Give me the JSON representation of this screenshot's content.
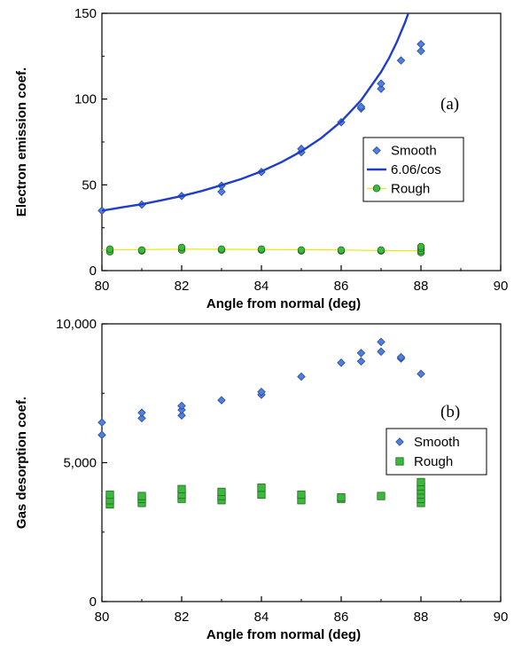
{
  "chart_data": [
    {
      "type": "scatter",
      "panel_label": "(a)",
      "xlabel": "Angle from normal (deg)",
      "ylabel": "Electron emission coef.",
      "xlim": [
        80,
        90
      ],
      "ylim": [
        0,
        150
      ],
      "x_ticks": [
        80,
        82,
        84,
        86,
        88,
        90
      ],
      "x_tick_labels": [
        "80",
        "82",
        "84",
        "86",
        "88",
        "90"
      ],
      "y_ticks": [
        0,
        50,
        100,
        150
      ],
      "y_tick_labels": [
        "0",
        "50",
        "100",
        "150"
      ],
      "grid": false,
      "legend_position": "right-middle",
      "series": [
        {
          "name": "Smooth",
          "kind": "scatter",
          "marker": "diamond",
          "color": "#4f7fe0",
          "points": [
            [
              80,
              35
            ],
            [
              81,
              38.5
            ],
            [
              82,
              43.5
            ],
            [
              83,
              46
            ],
            [
              83,
              49.5
            ],
            [
              84,
              57.5
            ],
            [
              85,
              69
            ],
            [
              85,
              71
            ],
            [
              86,
              86.5
            ],
            [
              86.5,
              94.5
            ],
            [
              86.5,
              95.5
            ],
            [
              87,
              106
            ],
            [
              87,
              109
            ],
            [
              87.5,
              122.5
            ],
            [
              88,
              128
            ],
            [
              88,
              132
            ]
          ]
        },
        {
          "name": "6.06/cos",
          "kind": "line",
          "color": "#1f3fc8",
          "x": [
            80,
            80.5,
            81,
            81.5,
            82,
            82.5,
            83,
            83.5,
            84,
            84.5,
            85,
            85.5,
            86,
            86.5,
            87,
            87.2,
            87.4,
            87.6,
            87.75
          ],
          "values": [
            34.9,
            36.9,
            38.7,
            41.0,
            43.5,
            46.4,
            49.8,
            53.5,
            57.9,
            63.2,
            69.5,
            77.3,
            86.9,
            99.3,
            115.8,
            123.9,
            133.5,
            144.6,
            154.4
          ]
        },
        {
          "name": "Rough",
          "kind": "scatter+line",
          "marker": "circle",
          "color": "#3cb83c",
          "line_color": "#e8e800",
          "points": [
            [
              80.2,
              11
            ],
            [
              80.2,
              12.5
            ],
            [
              81,
              11.5
            ],
            [
              81,
              12
            ],
            [
              82,
              12
            ],
            [
              82,
              13.5
            ],
            [
              83,
              12
            ],
            [
              83,
              12.5
            ],
            [
              84,
              12
            ],
            [
              84,
              12.5
            ],
            [
              85,
              11.5
            ],
            [
              85,
              12
            ],
            [
              86,
              11.5
            ],
            [
              86,
              12
            ],
            [
              87,
              11.5
            ],
            [
              87,
              12
            ],
            [
              88,
              10.5
            ],
            [
              88,
              11.5
            ],
            [
              88,
              13
            ],
            [
              88,
              14
            ]
          ],
          "line_x": [
            80,
            82,
            84,
            86,
            88
          ],
          "line_values": [
            12,
            12.5,
            12.3,
            12,
            11.5
          ]
        }
      ]
    },
    {
      "type": "scatter",
      "panel_label": "(b)",
      "xlabel": "Angle from normal (deg)",
      "ylabel": "Gas desorption coef.",
      "xlim": [
        80,
        90
      ],
      "ylim": [
        0,
        10000
      ],
      "x_ticks": [
        80,
        82,
        84,
        86,
        88,
        90
      ],
      "x_tick_labels": [
        "80",
        "82",
        "84",
        "86",
        "88",
        "90"
      ],
      "y_ticks": [
        0,
        5000,
        10000
      ],
      "y_tick_labels": [
        "0",
        "5,000",
        "10,000"
      ],
      "grid": false,
      "legend_position": "right-middle",
      "series": [
        {
          "name": "Smooth",
          "kind": "scatter",
          "marker": "diamond",
          "color": "#4f7fe0",
          "points": [
            [
              80,
              6000
            ],
            [
              80,
              6450
            ],
            [
              81,
              6600
            ],
            [
              81,
              6800
            ],
            [
              82,
              6700
            ],
            [
              82,
              6900
            ],
            [
              82,
              7050
            ],
            [
              83,
              7250
            ],
            [
              84,
              7450
            ],
            [
              84,
              7550
            ],
            [
              85,
              8100
            ],
            [
              86,
              8600
            ],
            [
              86.5,
              8650
            ],
            [
              86.5,
              8950
            ],
            [
              87,
              9000
            ],
            [
              87,
              9350
            ],
            [
              87.5,
              8750
            ],
            [
              87.5,
              8800
            ],
            [
              88,
              8200
            ]
          ]
        },
        {
          "name": "Rough",
          "kind": "scatter",
          "marker": "square",
          "color": "#3cb83c",
          "points": [
            [
              80.2,
              3500
            ],
            [
              80.2,
              3650
            ],
            [
              80.2,
              3850
            ],
            [
              81,
              3550
            ],
            [
              81,
              3700
            ],
            [
              81,
              3800
            ],
            [
              82,
              3700
            ],
            [
              82,
              3850
            ],
            [
              82,
              4050
            ],
            [
              83,
              3650
            ],
            [
              83,
              3800
            ],
            [
              83,
              3950
            ],
            [
              84,
              3850
            ],
            [
              84,
              4100
            ],
            [
              85,
              3650
            ],
            [
              85,
              3850
            ],
            [
              86,
              3700
            ],
            [
              86,
              3750
            ],
            [
              87,
              3800
            ],
            [
              88,
              3550
            ],
            [
              88,
              3700
            ],
            [
              88,
              3850
            ],
            [
              88,
              4000
            ],
            [
              88,
              4150
            ],
            [
              88,
              4300
            ]
          ]
        }
      ]
    }
  ]
}
